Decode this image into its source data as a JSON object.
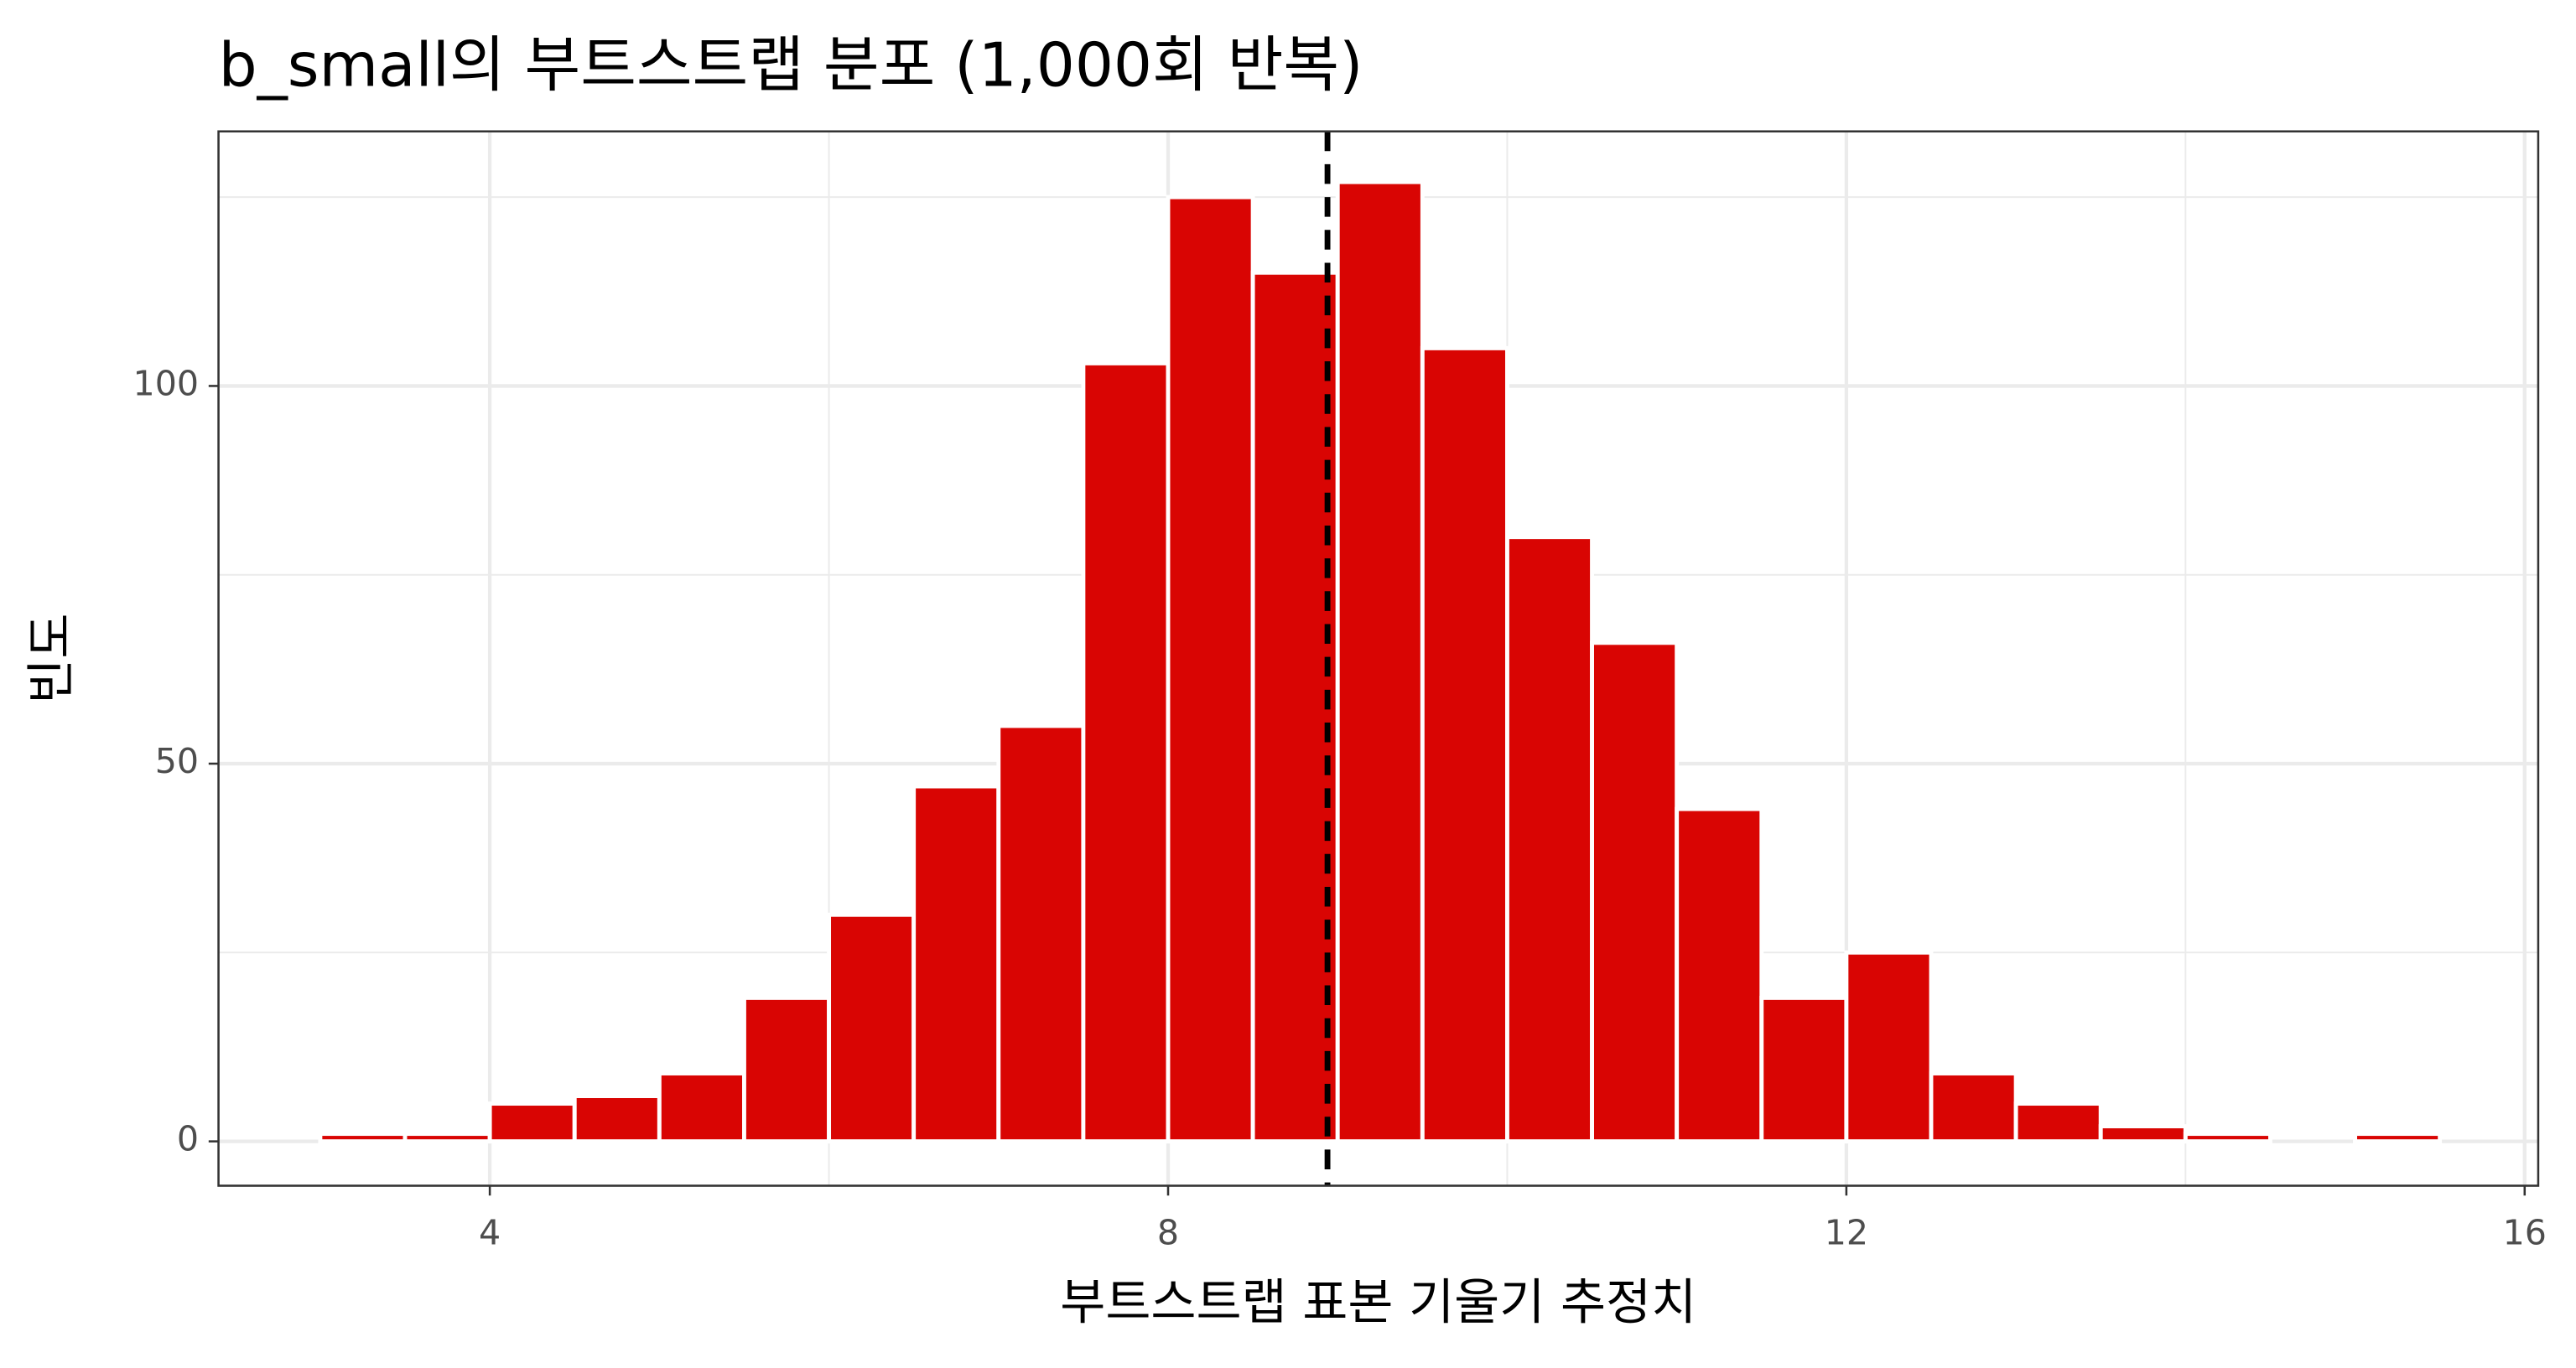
{
  "chart_data": {
    "type": "histogram",
    "title": "b_small의 부트스트랩 분포 (1,000회 반복)",
    "x_label": "부트스트랩 표본 기울기 추정치",
    "y_label": "빈도",
    "bins": [
      3.0,
      3.5,
      4.0,
      4.5,
      5.0,
      5.5,
      6.0,
      6.5,
      7.0,
      7.5,
      8.0,
      8.5,
      9.0,
      9.5,
      10.0,
      10.5,
      11.0,
      11.5,
      12.0,
      12.5,
      13.0,
      13.5,
      14.0,
      14.5,
      15.0,
      15.5
    ],
    "values": [
      1,
      1,
      5,
      6,
      9,
      19,
      30,
      47,
      55,
      103,
      125,
      115,
      127,
      105,
      80,
      66,
      44,
      19,
      25,
      9,
      5,
      2,
      1,
      0,
      1
    ],
    "color": "#d90503",
    "edge_color": "#ffffff",
    "vline": 8.94,
    "vline_color": "#000000",
    "xlim": [
      2.4,
      16.08
    ],
    "ylim": [
      -5.87,
      133.7
    ],
    "xticks": [
      4,
      8,
      12,
      16
    ],
    "yticks": [
      0,
      50,
      100
    ],
    "grid": true
  }
}
